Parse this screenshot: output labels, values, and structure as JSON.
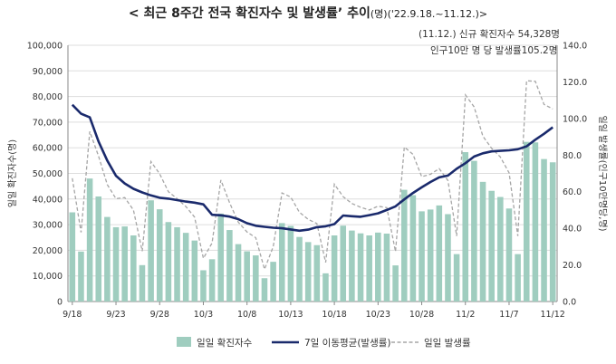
{
  "title": {
    "main": "< 최근 8주간 전국 확진자수 및 발생률’ 추이",
    "sub": "(명)('22.9.18.~11.12.)>"
  },
  "annotations": {
    "line1": "(11.12.) 신규 확진자수 54,328명",
    "line2": "인구10만 명 당 발생률105.2명"
  },
  "colors": {
    "bar": "#9fcdbf",
    "avg_line": "#1a2a6c",
    "daily_line": "#a6a6a6",
    "grid": "#dddddd"
  },
  "chart_data": {
    "type": "bar",
    "title": "< 최근 8주간 전국 확진자수 및 발생률’ 추이(명)('22.9.18.~11.12.)>",
    "ylabel_left": "일일 확진자수(명)",
    "ylabel_right": "일일 발생률(인구10만명당,명)",
    "ylim_left": [
      0,
      100000
    ],
    "ylim_right": [
      0,
      140
    ],
    "yticks_left": [
      "0",
      "10,000",
      "20,000",
      "30,000",
      "40,000",
      "50,000",
      "60,000",
      "70,000",
      "80,000",
      "90,000",
      "100,000"
    ],
    "yticks_right": [
      "0.0",
      "20.0",
      "40.0",
      "60.0",
      "80.0",
      "100.0",
      "120.0",
      "140.0"
    ],
    "x_tick_labels": [
      "9/18",
      "9/23",
      "9/28",
      "10/3",
      "10/8",
      "10/13",
      "10/18",
      "10/23",
      "10/28",
      "11/2",
      "11/7",
      "11/12"
    ],
    "x_tick_every": 5,
    "grid": true,
    "legend_position": "bottom",
    "legend": [
      "일일 확진자수",
      "7일 이동평균(발생률)",
      "일일 발생률"
    ],
    "dates": [
      "9/18",
      "9/19",
      "9/20",
      "9/21",
      "9/22",
      "9/23",
      "9/24",
      "9/25",
      "9/26",
      "9/27",
      "9/28",
      "9/29",
      "9/30",
      "10/1",
      "10/2",
      "10/3",
      "10/4",
      "10/5",
      "10/6",
      "10/7",
      "10/8",
      "10/9",
      "10/10",
      "10/11",
      "10/12",
      "10/13",
      "10/14",
      "10/15",
      "10/16",
      "10/17",
      "10/18",
      "10/19",
      "10/20",
      "10/21",
      "10/22",
      "10/23",
      "10/24",
      "10/25",
      "10/26",
      "10/27",
      "10/28",
      "10/29",
      "10/30",
      "10/31",
      "11/1",
      "11/2",
      "11/3",
      "11/4",
      "11/5",
      "11/6",
      "11/7",
      "11/8",
      "11/9",
      "11/10",
      "11/11",
      "11/12"
    ],
    "series": [
      {
        "name": "일일 확진자수",
        "type": "bar",
        "axis": "left",
        "values": [
          34800,
          19500,
          48000,
          41000,
          33000,
          29000,
          29300,
          25800,
          14200,
          39500,
          36000,
          31000,
          29000,
          26800,
          23800,
          12200,
          16500,
          34300,
          27900,
          22400,
          19600,
          18000,
          9100,
          15500,
          30600,
          29500,
          25200,
          23200,
          22000,
          11000,
          25800,
          29600,
          27700,
          26600,
          25800,
          26900,
          26500,
          14100,
          43600,
          41500,
          35200,
          35900,
          37500,
          34100,
          18500,
          58300,
          54900,
          46700,
          43200,
          40800,
          36300,
          18500,
          62300,
          62100,
          55600,
          54328
        ]
      },
      {
        "name": "7일 이동평균(발생률)",
        "type": "line",
        "axis": "right",
        "values": [
          107.5,
          102.6,
          100.6,
          87.4,
          77.0,
          68.7,
          64.5,
          61.6,
          59.6,
          58.0,
          56.7,
          56.2,
          55.4,
          54.6,
          54.0,
          53.1,
          47.4,
          47.1,
          46.4,
          45.0,
          42.8,
          41.4,
          40.8,
          40.3,
          40.0,
          39.4,
          38.7,
          39.3,
          40.6,
          41.1,
          42.3,
          47.0,
          46.6,
          46.3,
          47.2,
          48.2,
          50.0,
          52.0,
          55.8,
          59.3,
          62.4,
          65.3,
          67.8,
          68.8,
          72.5,
          75.6,
          79.2,
          81.0,
          82.0,
          82.3,
          82.6,
          83.2,
          84.8,
          88.4,
          91.6,
          95.2
        ]
      },
      {
        "name": "일일 발생률",
        "type": "line",
        "axis": "right",
        "values": [
          67.4,
          37.8,
          92.9,
          79.4,
          63.9,
          56.2,
          56.8,
          50.0,
          27.5,
          76.5,
          69.7,
          60.0,
          56.2,
          51.9,
          46.1,
          23.6,
          32.0,
          66.4,
          54.0,
          43.4,
          38.0,
          34.9,
          17.6,
          30.0,
          59.3,
          57.1,
          48.8,
          44.9,
          42.6,
          21.3,
          64.1,
          57.3,
          53.6,
          51.5,
          50.0,
          52.1,
          51.3,
          27.3,
          84.4,
          80.4,
          68.2,
          69.5,
          72.6,
          66.1,
          35.8,
          112.9,
          106.3,
          90.4,
          83.7,
          79.0,
          70.3,
          35.8,
          120.6,
          120.3,
          107.7,
          105.2
        ]
      }
    ]
  }
}
